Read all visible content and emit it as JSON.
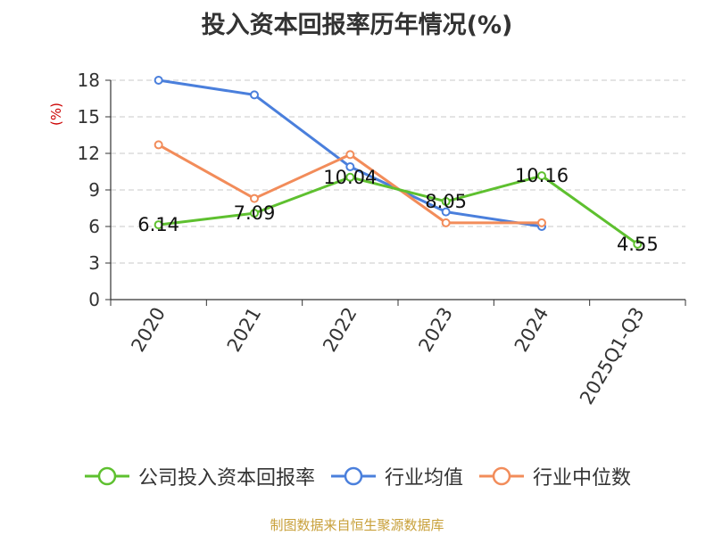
{
  "title": "投入资本回报率历年情况(%)",
  "source": "制图数据来自恒生聚源数据库",
  "chart_data": {
    "type": "line",
    "title": "投入资本回报率历年情况(%)",
    "ylabel": "(%)",
    "xlabel": "",
    "categories": [
      "2020",
      "2021",
      "2022",
      "2023",
      "2024",
      "2025Q1-Q3"
    ],
    "ylim": [
      0,
      18
    ],
    "yticks": [
      0,
      3,
      6,
      9,
      12,
      15,
      18
    ],
    "grid": true,
    "legend_position": "bottom",
    "series": [
      {
        "name": "公司投入资本回报率",
        "color": "#5ec02f",
        "values": [
          6.14,
          7.09,
          10.04,
          8.05,
          10.16,
          4.55
        ],
        "labels": [
          "6.14",
          "7.09",
          "10.04",
          "8.05",
          "10.16",
          "4.55"
        ]
      },
      {
        "name": "行业均值",
        "color": "#4a7fdc",
        "values": [
          18.0,
          16.8,
          10.9,
          7.2,
          6.0,
          null
        ]
      },
      {
        "name": "行业中位数",
        "color": "#f28c5a",
        "values": [
          12.7,
          8.3,
          11.9,
          6.3,
          6.3,
          null
        ]
      }
    ]
  }
}
